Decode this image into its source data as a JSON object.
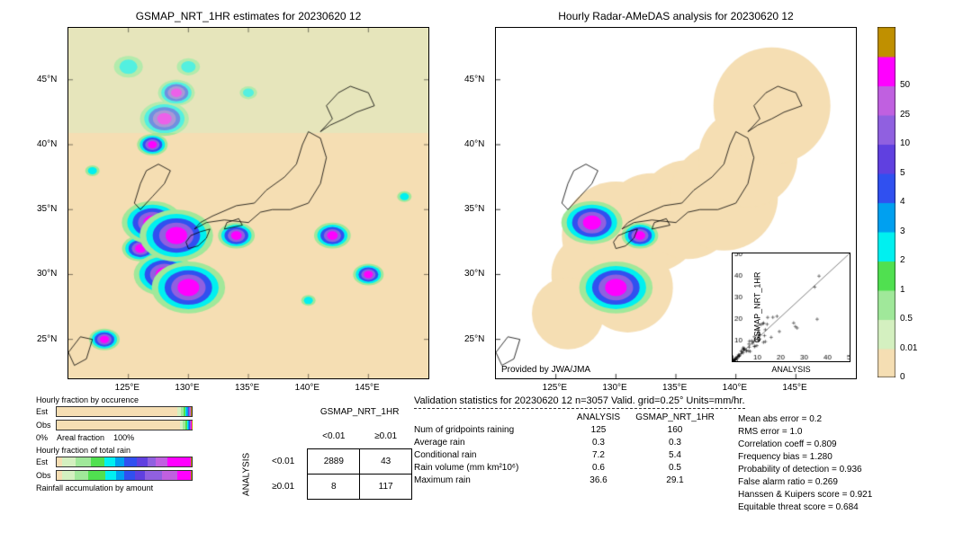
{
  "maps": {
    "left_title": "GSMAP_NRT_1HR estimates for 20230620 12",
    "right_title": "Hourly Radar-AMeDAS analysis for 20230620 12",
    "attribution": "Provided by JWA/JMA",
    "xlim": [
      120,
      150
    ],
    "ylim": [
      22,
      49
    ],
    "xticks": [
      "125°E",
      "130°E",
      "135°E",
      "140°E",
      "145°E"
    ],
    "yticks": [
      "25°N",
      "30°N",
      "35°N",
      "40°N",
      "45°N"
    ],
    "background_color": "#f5deb3",
    "land_color": "#ffffff",
    "precip_colors_low_to_high": [
      "#f5deb3",
      "#d4f0c0",
      "#a0e89a",
      "#50e050",
      "#00f0f0",
      "#00a0f0",
      "#3050f0",
      "#6040e0",
      "#9060e0",
      "#c060e0",
      "#ff00ff",
      "#c09000"
    ]
  },
  "colorbar": {
    "ticks": [
      "0",
      "0.01",
      "0.5",
      "1",
      "2",
      "3",
      "4",
      "5",
      "10",
      "25",
      "50"
    ],
    "colors": [
      "#f5deb3",
      "#d4f0c0",
      "#a0e89a",
      "#50e050",
      "#00f0f0",
      "#00a0f0",
      "#3050f0",
      "#6040e0",
      "#9060e0",
      "#c060e0",
      "#ff00ff",
      "#c09000"
    ]
  },
  "scatter": {
    "xlabel": "ANALYSIS",
    "ylabel": "GSMAP_NRT_1HR",
    "lim": [
      0,
      50
    ],
    "ticks": [
      0,
      10,
      20,
      30,
      40,
      50
    ]
  },
  "hourly": {
    "title1": "Hourly fraction by occurence",
    "title2": "Hourly fraction of total rain",
    "title3": "Rainfall accumulation by amount",
    "row_labels": [
      "Est",
      "Obs"
    ],
    "axis_left": "0%",
    "axis_mid": "Areal fraction",
    "axis_right": "100%",
    "occ_est": [
      0.9,
      0.03,
      0.02,
      0.01,
      0.01,
      0.01,
      0.005,
      0.005,
      0.005,
      0.005,
      0.005,
      0.005
    ],
    "occ_obs": [
      0.92,
      0.02,
      0.02,
      0.01,
      0.01,
      0.005,
      0.005,
      0.005,
      0.005,
      0.003,
      0.003,
      0.001
    ],
    "tot_est": [
      0.04,
      0.1,
      0.11,
      0.1,
      0.08,
      0.07,
      0.09,
      0.08,
      0.06,
      0.09,
      0.17,
      0.01
    ],
    "tot_obs": [
      0.04,
      0.09,
      0.1,
      0.13,
      0.08,
      0.06,
      0.08,
      0.07,
      0.13,
      0.11,
      0.1,
      0.01
    ]
  },
  "contingency": {
    "col_header": "GSMAP_NRT_1HR",
    "row_header": "ANALYSIS",
    "cols": [
      "<0.01",
      "≥0.01"
    ],
    "rows_lbl": [
      "<0.01",
      "≥0.01"
    ],
    "cells": [
      [
        2889,
        43
      ],
      [
        8,
        117
      ]
    ]
  },
  "validation": {
    "title": "Validation statistics for 20230620 12  n=3057 Valid. grid=0.25°  Units=mm/hr.",
    "col1": "ANALYSIS",
    "col2": "GSMAP_NRT_1HR",
    "rows": [
      {
        "k": "Num of gridpoints raining",
        "a": "125",
        "b": "160"
      },
      {
        "k": "Average rain",
        "a": "0.3",
        "b": "0.3"
      },
      {
        "k": "Conditional rain",
        "a": "7.2",
        "b": "5.4"
      },
      {
        "k": "Rain volume (mm km²10⁶)",
        "a": "0.6",
        "b": "0.5"
      },
      {
        "k": "Maximum rain",
        "a": "36.6",
        "b": "29.1"
      }
    ],
    "metrics": [
      {
        "k": "Mean abs error =",
        "v": "0.2"
      },
      {
        "k": "RMS error =",
        "v": "1.0"
      },
      {
        "k": "Correlation coeff =",
        "v": "0.809"
      },
      {
        "k": "Frequency bias =",
        "v": "1.280"
      },
      {
        "k": "Probability of detection =",
        "v": "0.936"
      },
      {
        "k": "False alarm ratio =",
        "v": "0.269"
      },
      {
        "k": "Hanssen & Kuipers score =",
        "v": "0.921"
      },
      {
        "k": "Equitable threat score =",
        "v": "0.684"
      }
    ]
  }
}
